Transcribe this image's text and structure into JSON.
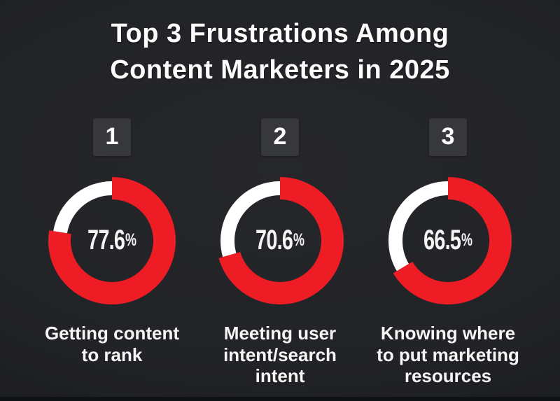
{
  "title": {
    "line1": "Top 3 Frustrations Among",
    "line2": "Content Marketers in 2025"
  },
  "cards": [
    {
      "rank": "1",
      "value_text": "77.6",
      "unit": "%",
      "label": "Getting content to rank",
      "label_lines": [
        "Getting content",
        "to rank",
        ""
      ]
    },
    {
      "rank": "2",
      "value_text": "70.6",
      "unit": "%",
      "label": "Meeting user intent/search intent",
      "label_lines": [
        "Meeting user",
        "intent/search",
        "intent"
      ]
    },
    {
      "rank": "3",
      "value_text": "66.5",
      "unit": "%",
      "label": "Knowing where to put marketing resources",
      "label_lines": [
        "Knowing where",
        "to put marketing",
        "resources"
      ]
    }
  ],
  "chart_data": {
    "type": "pie",
    "variant": "donut-progress",
    "title": "Top 3 Frustrations Among Content Marketers in 2025",
    "unit": "%",
    "series": [
      {
        "rank": 1,
        "label": "Getting content to rank",
        "value": 77.6
      },
      {
        "rank": 2,
        "label": "Meeting user intent/search intent",
        "value": 70.6
      },
      {
        "rank": 3,
        "label": "Knowing where to put marketing resources",
        "value": 66.5
      }
    ],
    "colors": {
      "value_arc": "#ee1c25",
      "remainder_arc": "#ffffff",
      "background": "#222327",
      "badge": "#37383c",
      "text": "#fafafa"
    },
    "legend": "none",
    "value_labels": "center",
    "start_angle_deg": 0,
    "direction": "clockwise"
  }
}
